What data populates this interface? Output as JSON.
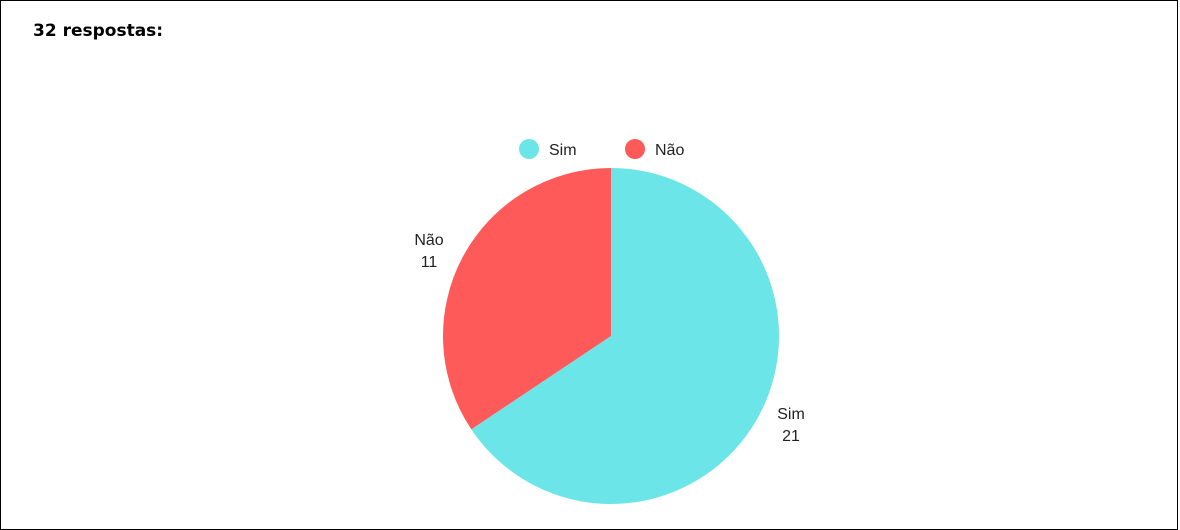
{
  "heading": "32 respostas:",
  "chart_data": {
    "type": "pie",
    "categories": [
      "Sim",
      "Não"
    ],
    "values": [
      21,
      11
    ],
    "colors": [
      "#6ce5e8",
      "#ff5a5a"
    ],
    "data_labels": [
      {
        "name": "Sim",
        "value": "21"
      },
      {
        "name": "Não",
        "value": "11"
      }
    ],
    "legend": {
      "position": "top",
      "entries": [
        "Sim",
        "Não"
      ]
    },
    "start_angle": "12 o'clock",
    "direction": "clockwise"
  }
}
